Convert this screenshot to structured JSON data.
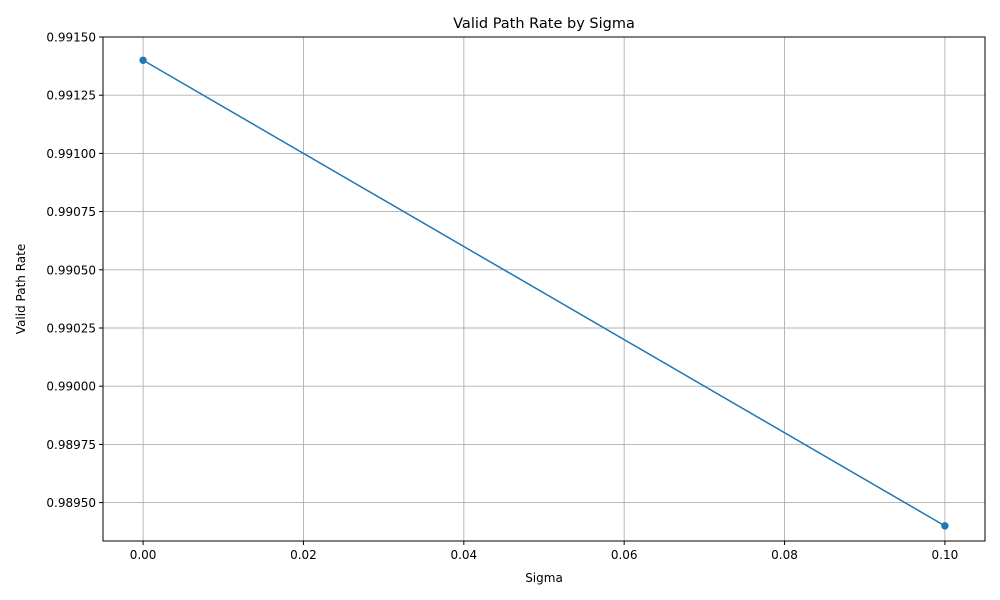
{
  "chart_data": {
    "type": "line",
    "title": "Valid Path Rate by Sigma",
    "xlabel": "Sigma",
    "ylabel": "Valid Path Rate",
    "xlim": [
      -0.005,
      0.105
    ],
    "ylim": [
      0.989335,
      0.9915
    ],
    "x_ticks": [
      0.0,
      0.02,
      0.04,
      0.06,
      0.08,
      0.1
    ],
    "x_tick_labels": [
      "0.00",
      "0.02",
      "0.04",
      "0.06",
      "0.08",
      "0.10"
    ],
    "y_ticks": [
      0.9895,
      0.98975,
      0.99,
      0.99025,
      0.9905,
      0.99075,
      0.991,
      0.99125,
      0.9915
    ],
    "y_tick_labels": [
      "0.98950",
      "0.98975",
      "0.99000",
      "0.99025",
      "0.99050",
      "0.99075",
      "0.99100",
      "0.99125",
      "0.99150"
    ],
    "grid": true,
    "series": [
      {
        "x": [
          0.0,
          0.1
        ],
        "y": [
          0.9914,
          0.9894
        ],
        "color": "#1f77b4",
        "marker": "circle"
      }
    ]
  }
}
